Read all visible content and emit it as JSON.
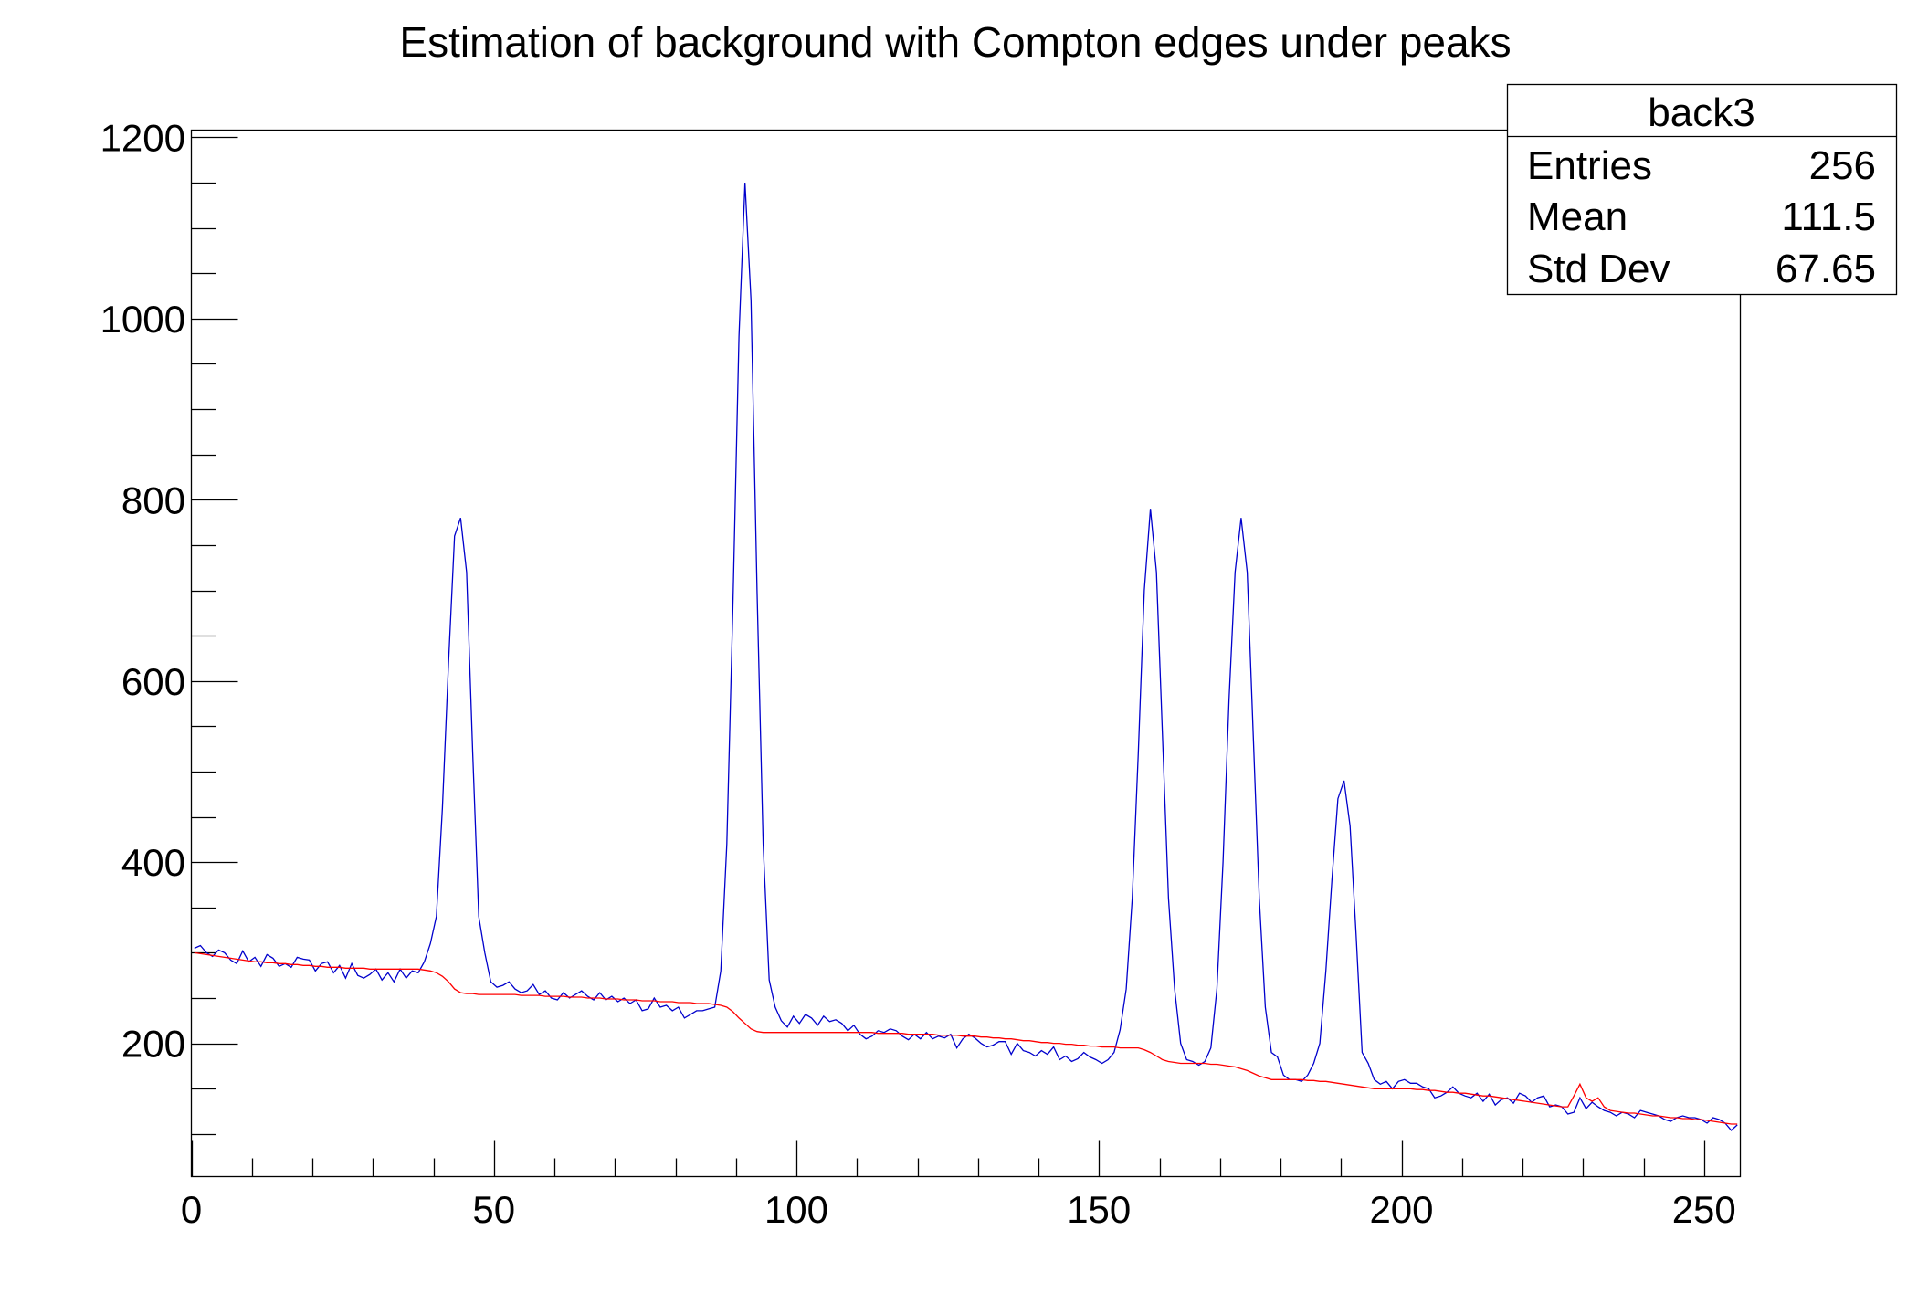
{
  "chart_data": {
    "type": "line",
    "title": "Estimation of background with Compton edges under peaks",
    "xlabel": "",
    "ylabel": "",
    "xlim": [
      0,
      256
    ],
    "ylim": [
      53,
      1208
    ],
    "x_ticks": [
      "0",
      "50",
      "100",
      "150",
      "200",
      "250"
    ],
    "y_ticks": [
      "200",
      "400",
      "600",
      "800",
      "1000",
      "1200"
    ],
    "grid": false,
    "colors": {
      "histogram": "#0000cc",
      "background": "#ff0000"
    },
    "series": [
      {
        "values": [
          305,
          308,
          300,
          296,
          303,
          300,
          292,
          288,
          302,
          290,
          295,
          285,
          298,
          294,
          285,
          288,
          284,
          295,
          293,
          292,
          280,
          288,
          290,
          278,
          286,
          272,
          288,
          275,
          272,
          276,
          282,
          270,
          278,
          268,
          282,
          272,
          280,
          278,
          290,
          310,
          340,
          460,
          620,
          760,
          780,
          720,
          520,
          340,
          300,
          268,
          262,
          264,
          268,
          260,
          256,
          258,
          265,
          254,
          258,
          250,
          248,
          256,
          250,
          254,
          258,
          252,
          248,
          256,
          248,
          252,
          246,
          250,
          244,
          248,
          236,
          238,
          250,
          240,
          242,
          236,
          240,
          228,
          232,
          236,
          236,
          238,
          240,
          280,
          420,
          680,
          980,
          1150,
          1020,
          700,
          420,
          270,
          240,
          225,
          218,
          230,
          222,
          232,
          228,
          220,
          230,
          224,
          226,
          222,
          214,
          220,
          210,
          205,
          208,
          214,
          212,
          216,
          214,
          208,
          204,
          210,
          205,
          212,
          205,
          208,
          206,
          210,
          195,
          205,
          210,
          206,
          200,
          196,
          198,
          202,
          202,
          188,
          200,
          192,
          190,
          186,
          192,
          188,
          196,
          182,
          186,
          180,
          183,
          190,
          185,
          182,
          178,
          182,
          190,
          215,
          260,
          360,
          520,
          700,
          790,
          720,
          540,
          360,
          260,
          200,
          182,
          180,
          176,
          180,
          195,
          260,
          400,
          580,
          720,
          780,
          720,
          540,
          360,
          240,
          190,
          185,
          165,
          160,
          160,
          158,
          165,
          178,
          200,
          280,
          380,
          470,
          490,
          440,
          320,
          190,
          178,
          160,
          155,
          158,
          150,
          158,
          160,
          156,
          156,
          152,
          150,
          140,
          142,
          146,
          152,
          145,
          142,
          140,
          145,
          136,
          144,
          132,
          138,
          140,
          134,
          145,
          142,
          135,
          140,
          142,
          130,
          132,
          130,
          122,
          124,
          140,
          128,
          135,
          130,
          126,
          124,
          120,
          124,
          122,
          118,
          126,
          124,
          122,
          120,
          116,
          114,
          118,
          120,
          118,
          118,
          116,
          112,
          118,
          116,
          112,
          104,
          110
        ]
      },
      {
        "values": [
          300,
          299,
          298,
          297,
          296,
          295,
          294,
          293,
          292,
          291,
          290,
          290,
          289,
          289,
          288,
          288,
          287,
          287,
          286,
          286,
          285,
          285,
          284,
          284,
          284,
          283,
          283,
          283,
          283,
          282,
          282,
          282,
          282,
          282,
          282,
          282,
          282,
          282,
          281,
          280,
          278,
          274,
          268,
          260,
          256,
          255,
          255,
          254,
          254,
          254,
          254,
          254,
          254,
          254,
          253,
          253,
          253,
          253,
          252,
          252,
          252,
          252,
          251,
          251,
          251,
          250,
          250,
          250,
          249,
          249,
          249,
          248,
          248,
          248,
          247,
          247,
          247,
          246,
          246,
          246,
          245,
          245,
          245,
          244,
          244,
          244,
          243,
          242,
          240,
          235,
          228,
          222,
          216,
          213,
          212,
          212,
          212,
          212,
          212,
          212,
          212,
          212,
          212,
          212,
          212,
          212,
          212,
          212,
          212,
          212,
          212,
          212,
          212,
          211,
          211,
          211,
          211,
          211,
          210,
          210,
          210,
          210,
          210,
          209,
          209,
          209,
          209,
          208,
          208,
          208,
          207,
          207,
          206,
          206,
          205,
          205,
          204,
          203,
          203,
          202,
          201,
          201,
          200,
          200,
          199,
          199,
          198,
          198,
          197,
          197,
          196,
          196,
          196,
          195,
          195,
          195,
          195,
          193,
          190,
          186,
          182,
          180,
          179,
          178,
          178,
          178,
          178,
          178,
          177,
          177,
          176,
          175,
          174,
          172,
          170,
          167,
          164,
          162,
          160,
          160,
          160,
          160,
          160,
          160,
          159,
          159,
          158,
          158,
          157,
          156,
          155,
          154,
          153,
          152,
          151,
          150,
          150,
          150,
          150,
          150,
          150,
          150,
          149,
          149,
          148,
          148,
          147,
          146,
          146,
          145,
          145,
          144,
          143,
          142,
          142,
          141,
          140,
          139,
          138,
          137,
          136,
          135,
          134,
          133,
          132,
          131,
          130,
          130,
          142,
          155,
          140,
          136,
          140,
          130,
          126,
          125,
          124,
          123,
          123,
          122,
          121,
          120,
          120,
          119,
          118,
          118,
          117,
          117,
          116,
          116,
          115,
          114,
          113,
          112,
          111,
          111
        ]
      }
    ]
  },
  "stats_box": {
    "name": "back3",
    "rows": [
      {
        "label": "Entries",
        "value": "256"
      },
      {
        "label": "Mean",
        "value": "111.5"
      },
      {
        "label": "Std Dev",
        "value": "67.65"
      }
    ]
  }
}
